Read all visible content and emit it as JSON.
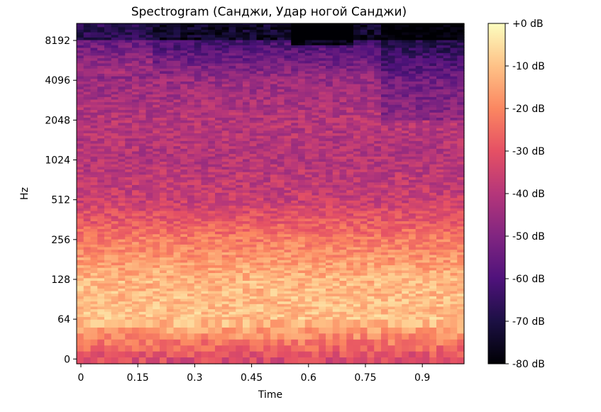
{
  "chart_data": {
    "type": "heatmap",
    "title": "Spectrogram (Санджи, Удар ногой Санджи)",
    "xlabel": "Time",
    "ylabel": "Hz",
    "x_ticks": [
      "0",
      "0.15",
      "0.3",
      "0.45",
      "0.6",
      "0.75",
      "0.9"
    ],
    "x_tick_values": [
      0,
      0.15,
      0.3,
      0.45,
      0.6,
      0.75,
      0.9
    ],
    "xlim": [
      0,
      1.01
    ],
    "y_scale": "log2 (symlog)",
    "y_ticks": [
      "0",
      "64",
      "128",
      "256",
      "512",
      "1024",
      "2048",
      "4096",
      "8192"
    ],
    "y_tick_values": [
      0,
      64,
      128,
      256,
      512,
      1024,
      2048,
      4096,
      8192
    ],
    "ylim": [
      0,
      11025
    ],
    "colorbar": {
      "label_ticks": [
        "+0 dB",
        "-10 dB",
        "-20 dB",
        "-30 dB",
        "-40 dB",
        "-50 dB",
        "-60 dB",
        "-70 dB",
        "-80 dB"
      ],
      "tick_values": [
        0,
        -10,
        -20,
        -30,
        -40,
        -50,
        -60,
        -70,
        -80
      ],
      "range": [
        -80,
        0
      ],
      "colormap": "magma"
    },
    "bands_db": [
      {
        "hz": 0,
        "db": -32,
        "note": "lowest row, purple/red"
      },
      {
        "hz": 64,
        "db": -10
      },
      {
        "hz": 128,
        "db": -12
      },
      {
        "hz": 256,
        "db": -22
      },
      {
        "hz": 512,
        "db": -36
      },
      {
        "hz": 1024,
        "db": -40
      },
      {
        "hz": 2048,
        "db": -40
      },
      {
        "hz": 4096,
        "db": -45
      },
      {
        "hz": 8192,
        "db": -62
      }
    ]
  }
}
